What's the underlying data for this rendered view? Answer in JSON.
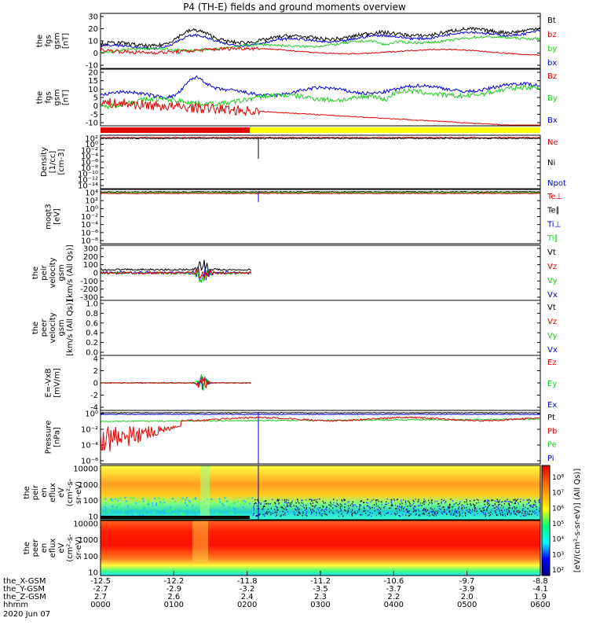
{
  "title": "P4 (TH-E) fields and ground moments overview",
  "colors": {
    "black": "#000000",
    "red": "#e00000",
    "green": "#22cc22",
    "blue": "#0000e0",
    "yellow": "#ffff00"
  },
  "chart_data": [
    {
      "type": "line",
      "ylabel": [
        "the",
        "fgs",
        "gsm",
        "[nT]"
      ],
      "ylim": [
        -10,
        30
      ],
      "yticks": [
        "30",
        "20",
        "10",
        "0",
        "-10"
      ],
      "legend": [
        {
          "name": "Bt",
          "color": "black"
        },
        {
          "name": "bz",
          "color": "red"
        },
        {
          "name": "by",
          "color": "green"
        },
        {
          "name": "bx",
          "color": "blue"
        }
      ]
    },
    {
      "type": "line",
      "ylabel": [
        "the",
        "fgs",
        "gsm",
        "[nT]"
      ],
      "ylim": [
        -15,
        20
      ],
      "yticks": [
        "20",
        "15",
        "10",
        "5",
        "0",
        "-5",
        "-10"
      ],
      "legend": [
        {
          "name": "Bz",
          "color": "red"
        },
        {
          "name": "By",
          "color": "green"
        },
        {
          "name": "Bx",
          "color": "blue"
        }
      ]
    },
    {
      "type": "line",
      "scale": "log",
      "ylabel": [
        "Density",
        "[1/cc]",
        "[cm-3]"
      ],
      "yticks": [
        "10²",
        "10⁰",
        "10⁻²",
        "10⁻⁴",
        "10⁻⁶",
        "10⁻⁸",
        "10⁻¹⁰",
        "10⁻¹²",
        "10⁻¹⁴"
      ],
      "legend": [
        {
          "name": "Ne",
          "color": "red"
        },
        {
          "name": "Ni",
          "color": "black"
        },
        {
          "name": "Npot",
          "color": "blue"
        }
      ]
    },
    {
      "type": "line",
      "scale": "log",
      "ylabel": [
        "moqt3",
        "[eV]"
      ],
      "yticks": [
        "10⁴",
        "10²",
        "10⁰",
        "10⁻²",
        "10⁻⁴",
        "10⁻⁶",
        "10⁻⁸"
      ],
      "legend": [
        {
          "name": "Te⊥",
          "color": "red"
        },
        {
          "name": "Te∥",
          "color": "black"
        },
        {
          "name": "Ti⊥",
          "color": "blue"
        },
        {
          "name": "Ti∥",
          "color": "green"
        }
      ]
    },
    {
      "type": "line",
      "ylabel": [
        "the",
        "peir",
        "velocity",
        "gsm",
        "[km/s (All Qs)]"
      ],
      "ylim": [
        -300,
        300
      ],
      "yticks": [
        "300",
        "200",
        "100",
        "0",
        "-100",
        "-200",
        "-300"
      ],
      "legend": [
        {
          "name": "Vt",
          "color": "black"
        },
        {
          "name": "Vz",
          "color": "red"
        },
        {
          "name": "Vy",
          "color": "green"
        },
        {
          "name": "Vx",
          "color": "blue"
        }
      ]
    },
    {
      "type": "line",
      "ylabel": [
        "the",
        "peer",
        "velocity",
        "gsm",
        "[km/s (All Qs)]"
      ],
      "ylim": [
        0,
        1
      ],
      "yticks": [
        "1.0",
        "0.8",
        "0.6",
        "0.4",
        "0.2",
        "0.0"
      ],
      "legend": [
        {
          "name": "Vt",
          "color": "black"
        },
        {
          "name": "Vz",
          "color": "red"
        },
        {
          "name": "Vy",
          "color": "green"
        },
        {
          "name": "Vx",
          "color": "blue"
        }
      ]
    },
    {
      "type": "line",
      "ylabel": [
        "E=-VxB",
        "[mV/m]"
      ],
      "ylim": [
        -4,
        4
      ],
      "yticks": [
        "4",
        "2",
        "0",
        "-2",
        "-4"
      ],
      "legend": [
        {
          "name": "Ez",
          "color": "red"
        },
        {
          "name": "Ey",
          "color": "green"
        },
        {
          "name": "Ex",
          "color": "blue"
        }
      ]
    },
    {
      "type": "line",
      "scale": "log",
      "ylabel": [
        "Pressure",
        "[nPa]"
      ],
      "yticks": [
        "10⁰",
        "10⁻²",
        "10⁻⁴",
        "10⁻⁶"
      ],
      "legend": [
        {
          "name": "Pt",
          "color": "black"
        },
        {
          "name": "Pb",
          "color": "red"
        },
        {
          "name": "Pe",
          "color": "green"
        },
        {
          "name": "Pi",
          "color": "blue"
        }
      ]
    },
    {
      "type": "heatmap",
      "ylabel": [
        "the",
        "peir",
        "en",
        "eflux",
        "eV",
        "(cm²-s-",
        "sr-eV)"
      ],
      "yticks": [
        "10000",
        "1000",
        "100",
        "10"
      ]
    },
    {
      "type": "heatmap",
      "ylabel": [
        "the",
        "peer",
        "en",
        "eflux",
        "eV",
        "(cm²-s-",
        "sr-eV)"
      ],
      "yticks": [
        "10000",
        "1000",
        "100",
        "10"
      ]
    }
  ],
  "colorbar": {
    "label": "[eV/(cm²-s-sr-eV)] (All Qs)]",
    "ticks": [
      "10⁸",
      "10⁷",
      "10⁶",
      "10⁵",
      "10⁴",
      "10³",
      "10²"
    ]
  },
  "x_axis": {
    "row_labels": [
      "the_X-GSM",
      "the_Y-GSM",
      "the_Z-GSM",
      "hhmm",
      "2020 Jun 07"
    ],
    "columns": [
      [
        "-12.5",
        "-2.7",
        "2.7",
        "0000"
      ],
      [
        "-12.2",
        "-2.9",
        "2.6",
        "0100"
      ],
      [
        "-11.8",
        "-3.2",
        "2.4",
        "0200"
      ],
      [
        "-11.2",
        "-3.5",
        "2.3",
        "0300"
      ],
      [
        "-10.6",
        "-3.7",
        "2.2",
        "0400"
      ],
      [
        "-9.7",
        "-3.9",
        "2.0",
        "0500"
      ],
      [
        "-8.8",
        "-4.1",
        "1.9",
        "0600"
      ]
    ]
  }
}
